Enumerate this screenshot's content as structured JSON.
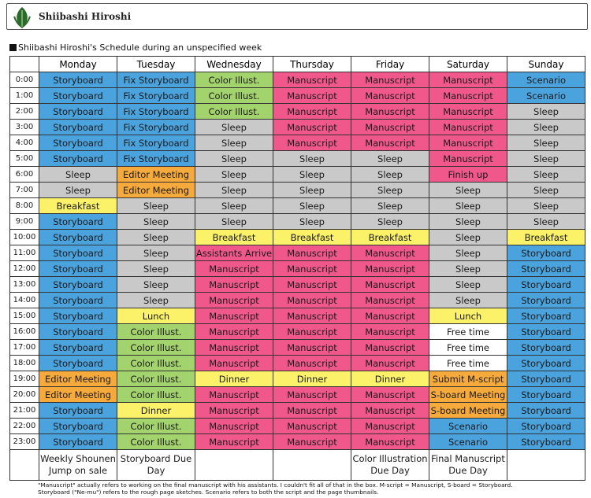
{
  "header": {
    "title": "Shiibashi Hiroshi"
  },
  "caption": "Shiibashi Hiroshi's Schedule during an unspecified week",
  "table": {
    "days": [
      "Monday",
      "Tuesday",
      "Wednesday",
      "Thursday",
      "Friday",
      "Saturday",
      "Sunday"
    ],
    "rows": [
      {
        "time": "0:00",
        "cells": [
          "Storyboard",
          "Fix Storyboard",
          "Color Illust.",
          "Manuscript",
          "Manuscript",
          "Manuscript",
          "Scenario"
        ]
      },
      {
        "time": "1:00",
        "cells": [
          "Storyboard",
          "Fix Storyboard",
          "Color Illust.",
          "Manuscript",
          "Manuscript",
          "Manuscript",
          "Scenario"
        ]
      },
      {
        "time": "2:00",
        "cells": [
          "Storyboard",
          "Fix Storyboard",
          "Color Illust.",
          "Manuscript",
          "Manuscript",
          "Manuscript",
          "Sleep"
        ]
      },
      {
        "time": "3:00",
        "cells": [
          "Storyboard",
          "Fix Storyboard",
          "Sleep",
          "Manuscript",
          "Manuscript",
          "Manuscript",
          "Sleep"
        ]
      },
      {
        "time": "4:00",
        "cells": [
          "Storyboard",
          "Fix Storyboard",
          "Sleep",
          "Manuscript",
          "Manuscript",
          "Manuscript",
          "Sleep"
        ]
      },
      {
        "time": "5:00",
        "cells": [
          "Storyboard",
          "Fix Storyboard",
          "Sleep",
          "Sleep",
          "Sleep",
          "Manuscript",
          "Sleep"
        ]
      },
      {
        "time": "6:00",
        "cells": [
          "Sleep",
          "Editor Meeting",
          "Sleep",
          "Sleep",
          "Sleep",
          "Finish up",
          "Sleep"
        ]
      },
      {
        "time": "7:00",
        "cells": [
          "Sleep",
          "Editor Meeting",
          "Sleep",
          "Sleep",
          "Sleep",
          "Sleep",
          "Sleep"
        ]
      },
      {
        "time": "8:00",
        "cells": [
          "Breakfast",
          "Sleep",
          "Sleep",
          "Sleep",
          "Sleep",
          "Sleep",
          "Sleep"
        ]
      },
      {
        "time": "9:00",
        "cells": [
          "Storyboard",
          "Sleep",
          "Sleep",
          "Sleep",
          "Sleep",
          "Sleep",
          "Sleep"
        ]
      },
      {
        "time": "10:00",
        "cells": [
          "Storyboard",
          "Sleep",
          "Breakfast",
          "Breakfast",
          "Breakfast",
          "Sleep",
          "Breakfast"
        ]
      },
      {
        "time": "11:00",
        "cells": [
          "Storyboard",
          "Sleep",
          "Assistants Arrive",
          "Manuscript",
          "Manuscript",
          "Sleep",
          "Storyboard"
        ]
      },
      {
        "time": "12:00",
        "cells": [
          "Storyboard",
          "Sleep",
          "Manuscript",
          "Manuscript",
          "Manuscript",
          "Sleep",
          "Storyboard"
        ]
      },
      {
        "time": "13:00",
        "cells": [
          "Storyboard",
          "Sleep",
          "Manuscript",
          "Manuscript",
          "Manuscript",
          "Sleep",
          "Storyboard"
        ]
      },
      {
        "time": "14:00",
        "cells": [
          "Storyboard",
          "Sleep",
          "Manuscript",
          "Manuscript",
          "Manuscript",
          "Sleep",
          "Storyboard"
        ]
      },
      {
        "time": "15:00",
        "cells": [
          "Storyboard",
          "Lunch",
          "Manuscript",
          "Manuscript",
          "Manuscript",
          "Lunch",
          "Storyboard"
        ]
      },
      {
        "time": "16:00",
        "cells": [
          "Storyboard",
          "Color Illust.",
          "Manuscript",
          "Manuscript",
          "Manuscript",
          "Free time",
          "Storyboard"
        ]
      },
      {
        "time": "17:00",
        "cells": [
          "Storyboard",
          "Color Illust.",
          "Manuscript",
          "Manuscript",
          "Manuscript",
          "Free time",
          "Storyboard"
        ]
      },
      {
        "time": "18:00",
        "cells": [
          "Storyboard",
          "Color Illust.",
          "Manuscript",
          "Manuscript",
          "Manuscript",
          "Free time",
          "Storyboard"
        ]
      },
      {
        "time": "19:00",
        "cells": [
          "Editor Meeting",
          "Color Illust.",
          "Dinner",
          "Dinner",
          "Dinner",
          "Submit M-script",
          "Storyboard"
        ]
      },
      {
        "time": "20:00",
        "cells": [
          "Editor Meeting",
          "Color Illust.",
          "Manuscript",
          "Manuscript",
          "Manuscript",
          "S-board Meeting",
          "Storyboard"
        ]
      },
      {
        "time": "21:00",
        "cells": [
          "Storyboard",
          "Dinner",
          "Manuscript",
          "Manuscript",
          "Manuscript",
          "S-board Meeting",
          "Storyboard"
        ]
      },
      {
        "time": "22:00",
        "cells": [
          "Storyboard",
          "Color Illust.",
          "Manuscript",
          "Manuscript",
          "Manuscript",
          "Scenario",
          "Storyboard"
        ]
      },
      {
        "time": "23:00",
        "cells": [
          "Storyboard",
          "Color Illust.",
          "Manuscript",
          "Manuscript",
          "Manuscript",
          "Scenario",
          "Storyboard"
        ]
      }
    ],
    "footer": [
      "Weekly Shounen Jump on sale",
      "Storyboard Due Day",
      null,
      null,
      "Color Illustration Due Day",
      "Final Manuscript Due Day",
      null
    ],
    "colors": {
      "Storyboard": "#4ba3de",
      "Fix Storyboard": "#4ba3de",
      "Scenario": "#4ba3de",
      "Color Illust.": "#a3d36c",
      "Manuscript": "#f0588b",
      "Assistants Arrive": "#f0588b",
      "Finish up": "#f0588b",
      "Sleep": "#c9c9c9",
      "Breakfast": "#fbf26a",
      "Lunch": "#fbf26a",
      "Dinner": "#fbf26a",
      "Editor Meeting": "#f6aa3c",
      "Submit M-script": "#f6aa3c",
      "S-board Meeting": "#f6aa3c",
      "Free time": "#ffffff"
    }
  },
  "footnote": [
    "\"Manuscript\" actually refers to working on the final manuscript with his assistants. I couldn't fit all of that in the box. M-script = Manuscript, S-board = Storyboard.",
    "Storyboard (\"Ne-mu\") refers to the rough page sketches. Scenario refers to both the script and the page thumbnails."
  ]
}
